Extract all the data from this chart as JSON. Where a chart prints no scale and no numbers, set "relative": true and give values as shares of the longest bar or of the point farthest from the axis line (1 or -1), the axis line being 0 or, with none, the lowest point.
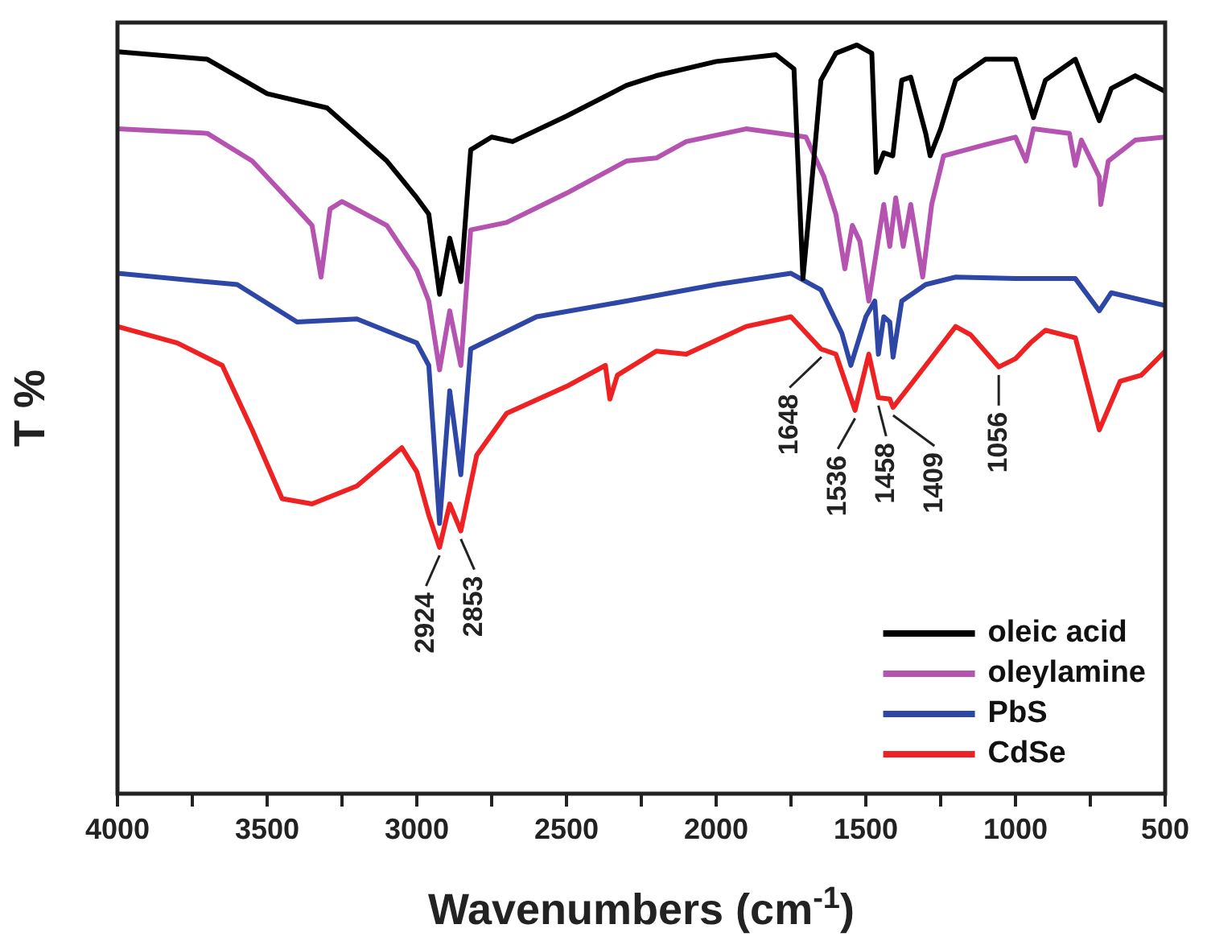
{
  "chart_data": {
    "type": "line",
    "relative": true,
    "xlabel": "Wavenumbers (cm$^{-1}$)",
    "ylabel": "T %",
    "xlim": [
      4000,
      500
    ],
    "xticks": [
      4000,
      {
        "value": 3750,
        "label": null
      },
      3500,
      {
        "value": 3250,
        "label": null
      },
      3000,
      {
        "value": 2750,
        "label": null
      },
      2500,
      {
        "value": 2250,
        "label": null
      },
      2000,
      {
        "value": 1750,
        "label": null
      },
      1500,
      {
        "value": 1250,
        "label": null
      },
      1000,
      {
        "value": 750,
        "label": null
      },
      500
    ],
    "marker": "none",
    "legend": "bottom right",
    "series": [
      {
        "name": "oleic acid",
        "color": "#000000",
        "x": [
          4000,
          3700,
          3500,
          3300,
          3100,
          3000,
          2960,
          2924,
          2890,
          2853,
          2820,
          2750,
          2680,
          2500,
          2300,
          2200,
          2000,
          1800,
          1740,
          1710,
          1690,
          1650,
          1600,
          1530,
          1480,
          1465,
          1440,
          1410,
          1380,
          1350,
          1300,
          1285,
          1250,
          1200,
          1100,
          1000,
          940,
          900,
          800,
          720,
          680,
          600,
          500
        ],
        "values": [
          0.991,
          0.981,
          0.935,
          0.916,
          0.845,
          0.796,
          0.774,
          0.667,
          0.742,
          0.684,
          0.86,
          0.877,
          0.871,
          0.905,
          0.946,
          0.959,
          0.978,
          0.987,
          0.968,
          0.688,
          0.774,
          0.953,
          0.989,
          1.0,
          0.989,
          0.83,
          0.856,
          0.852,
          0.953,
          0.957,
          0.882,
          0.852,
          0.888,
          0.953,
          0.981,
          0.981,
          0.903,
          0.953,
          0.981,
          0.899,
          0.942,
          0.959,
          0.938
        ]
      },
      {
        "name": "oleylamine",
        "color": "#b454b0",
        "x": [
          4000,
          3700,
          3550,
          3400,
          3350,
          3320,
          3290,
          3250,
          3100,
          3000,
          2960,
          2924,
          2890,
          2853,
          2820,
          2700,
          2500,
          2300,
          2200,
          2100,
          1900,
          1700,
          1640,
          1600,
          1570,
          1545,
          1520,
          1490,
          1465,
          1440,
          1420,
          1400,
          1375,
          1350,
          1310,
          1280,
          1240,
          1100,
          1000,
          965,
          940,
          820,
          800,
          780,
          720,
          715,
          690,
          600,
          500
        ],
        "values": [
          0.888,
          0.882,
          0.845,
          0.781,
          0.759,
          0.69,
          0.781,
          0.791,
          0.759,
          0.699,
          0.658,
          0.566,
          0.645,
          0.572,
          0.753,
          0.763,
          0.802,
          0.845,
          0.849,
          0.871,
          0.888,
          0.877,
          0.824,
          0.774,
          0.701,
          0.759,
          0.738,
          0.658,
          0.723,
          0.787,
          0.731,
          0.796,
          0.731,
          0.787,
          0.69,
          0.787,
          0.852,
          0.867,
          0.877,
          0.845,
          0.888,
          0.882,
          0.839,
          0.873,
          0.824,
          0.787,
          0.845,
          0.873,
          0.877
        ]
      },
      {
        "name": "PbS",
        "color": "#2e46a6",
        "x": [
          4000,
          3600,
          3400,
          3200,
          3000,
          2960,
          2924,
          2890,
          2853,
          2820,
          2600,
          2300,
          2000,
          1750,
          1650,
          1580,
          1550,
          1500,
          1470,
          1458,
          1440,
          1420,
          1409,
          1380,
          1300,
          1200,
          1000,
          800,
          720,
          680,
          500
        ],
        "values": [
          0.695,
          0.68,
          0.63,
          0.634,
          0.602,
          0.572,
          0.361,
          0.538,
          0.426,
          0.594,
          0.637,
          0.658,
          0.68,
          0.695,
          0.673,
          0.615,
          0.572,
          0.637,
          0.658,
          0.587,
          0.637,
          0.63,
          0.583,
          0.658,
          0.68,
          0.69,
          0.688,
          0.688,
          0.645,
          0.669,
          0.652
        ]
      },
      {
        "name": "CdSe",
        "color": "#ee2222",
        "x": [
          4000,
          3800,
          3650,
          3550,
          3450,
          3350,
          3200,
          3050,
          3000,
          2960,
          2924,
          2890,
          2853,
          2800,
          2700,
          2500,
          2370,
          2355,
          2330,
          2200,
          2100,
          1900,
          1750,
          1650,
          1600,
          1536,
          1490,
          1458,
          1420,
          1409,
          1300,
          1200,
          1150,
          1056,
          1000,
          950,
          900,
          800,
          720,
          650,
          580,
          500
        ],
        "values": [
          0.624,
          0.602,
          0.572,
          0.486,
          0.394,
          0.387,
          0.411,
          0.462,
          0.43,
          0.372,
          0.329,
          0.387,
          0.351,
          0.452,
          0.508,
          0.544,
          0.572,
          0.527,
          0.559,
          0.591,
          0.587,
          0.624,
          0.637,
          0.594,
          0.587,
          0.512,
          0.587,
          0.529,
          0.527,
          0.516,
          0.572,
          0.624,
          0.613,
          0.57,
          0.581,
          0.602,
          0.619,
          0.609,
          0.486,
          0.551,
          0.559,
          0.591
        ]
      }
    ],
    "annotations": [
      {
        "text": "2924",
        "x": 2924,
        "y": 0.329
      },
      {
        "text": "2853",
        "x": 2853,
        "y": 0.351
      },
      {
        "text": "1648",
        "x": 1648,
        "y": 0.594
      },
      {
        "text": "1536",
        "x": 1536,
        "y": 0.512
      },
      {
        "text": "1458",
        "x": 1458,
        "y": 0.529
      },
      {
        "text": "1409",
        "x": 1409,
        "y": 0.516
      },
      {
        "text": "1056",
        "x": 1056,
        "y": 0.57
      }
    ]
  }
}
